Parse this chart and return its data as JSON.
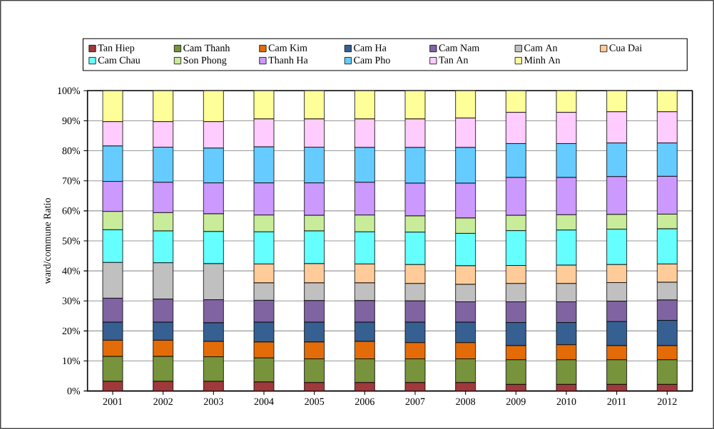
{
  "chart_data": {
    "type": "bar",
    "stacked": true,
    "ylabel": "ward/commune Ratio",
    "categories": [
      "2001",
      "2002",
      "2003",
      "2004",
      "2005",
      "2006",
      "2007",
      "2008",
      "2009",
      "2010",
      "2011",
      "2012"
    ],
    "series": [
      {
        "name": "Tan Hiep",
        "color": "#a0393c",
        "values": [
          3.2,
          3.2,
          3.2,
          3.0,
          2.8,
          2.8,
          2.8,
          2.8,
          2.2,
          2.2,
          2.2,
          2.2
        ]
      },
      {
        "name": "Cam Thanh",
        "color": "#77933c",
        "values": [
          8.3,
          8.3,
          8.2,
          8.0,
          7.9,
          7.9,
          7.9,
          7.9,
          8.2,
          8.2,
          8.2,
          8.2
        ]
      },
      {
        "name": "Cam Kim",
        "color": "#e36c09",
        "values": [
          5.4,
          5.4,
          5.1,
          5.3,
          5.6,
          5.8,
          5.4,
          5.4,
          4.7,
          5.0,
          4.7,
          4.7
        ]
      },
      {
        "name": "Cam Ha",
        "color": "#376092",
        "values": [
          6.0,
          6.0,
          6.2,
          6.6,
          6.6,
          6.4,
          6.8,
          6.8,
          7.7,
          7.4,
          8.0,
          8.4
        ]
      },
      {
        "name": "Cam Nam",
        "color": "#8064a2",
        "values": [
          8.0,
          7.7,
          7.7,
          7.3,
          7.2,
          7.2,
          7.1,
          6.8,
          6.9,
          6.9,
          6.8,
          6.8
        ]
      },
      {
        "name": "Cam An",
        "color": "#c0c0c0",
        "values": [
          11.9,
          12.1,
          12.0,
          5.8,
          5.9,
          5.9,
          5.8,
          5.8,
          6.1,
          6.1,
          6.2,
          5.9
        ]
      },
      {
        "name": "Cua Dai",
        "color": "#ffcc99",
        "values": [
          0,
          0,
          0,
          6.3,
          6.4,
          6.3,
          6.3,
          6.2,
          6.0,
          6.1,
          6.0,
          6.1
        ]
      },
      {
        "name": "Cam Chau",
        "color": "#66ffff",
        "values": [
          10.9,
          10.6,
          10.7,
          10.7,
          10.9,
          10.7,
          10.8,
          10.8,
          11.6,
          11.7,
          11.8,
          11.7
        ]
      },
      {
        "name": "Son Phong",
        "color": "#c8ec9a",
        "values": [
          6.1,
          6.1,
          5.9,
          5.6,
          5.2,
          5.6,
          5.4,
          5.1,
          5.1,
          5.1,
          4.9,
          4.9
        ]
      },
      {
        "name": "Thanh Ha",
        "color": "#cc99ff",
        "values": [
          10.0,
          10.1,
          10.3,
          10.7,
          10.8,
          10.9,
          10.9,
          11.6,
          12.6,
          12.4,
          12.6,
          12.6
        ]
      },
      {
        "name": "Cam Pho",
        "color": "#66ccff",
        "values": [
          11.8,
          11.7,
          11.6,
          12.0,
          11.9,
          11.6,
          11.9,
          11.9,
          11.3,
          11.3,
          11.2,
          11.1
        ]
      },
      {
        "name": "Tan An",
        "color": "#ffccff",
        "values": [
          8.1,
          8.5,
          8.8,
          9.3,
          9.4,
          9.5,
          9.5,
          9.8,
          10.4,
          10.4,
          10.4,
          10.4
        ]
      },
      {
        "name": "Minh An",
        "color": "#ffff99",
        "values": [
          10.3,
          10.3,
          10.3,
          9.4,
          9.4,
          9.4,
          9.4,
          9.1,
          7.2,
          7.2,
          7.0,
          7.0
        ]
      }
    ],
    "ylim": [
      0,
      100
    ],
    "yticks": [
      {
        "value": 0,
        "label": "0%"
      },
      {
        "value": 10,
        "label": "10%"
      },
      {
        "value": 20,
        "label": "20%"
      },
      {
        "value": 30,
        "label": "30%"
      },
      {
        "value": 40,
        "label": "40%"
      },
      {
        "value": 50,
        "label": "50%"
      },
      {
        "value": 60,
        "label": "60%"
      },
      {
        "value": 70,
        "label": "70%"
      },
      {
        "value": 80,
        "label": "80%"
      },
      {
        "value": 90,
        "label": "90%"
      },
      {
        "value": 100,
        "label": "100%"
      }
    ],
    "grid": "y",
    "legend": "top"
  }
}
